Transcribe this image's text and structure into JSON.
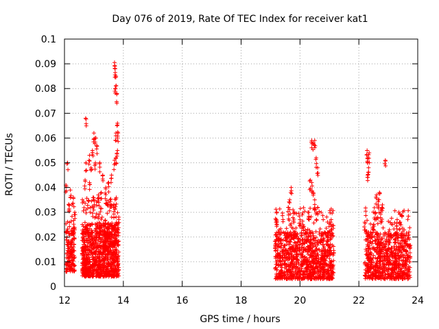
{
  "chart_data": {
    "type": "scatter",
    "title": "Day 076 of 2019, Rate Of TEC Index for receiver kat1",
    "xlabel": "GPS time / hours",
    "ylabel": "ROTI / TECUs",
    "xlim": [
      12,
      24
    ],
    "ylim": [
      0,
      0.1
    ],
    "xticks": [
      "12",
      "14",
      "16",
      "18",
      "20",
      "22",
      "24"
    ],
    "yticks": [
      "0",
      "0.01",
      "0.02",
      "0.03",
      "0.04",
      "0.05",
      "0.06",
      "0.07",
      "0.08",
      "0.09",
      "0.1"
    ],
    "grid": true,
    "marker": "+",
    "color": "#ff0000",
    "clusters": [
      {
        "x_range": [
          12.05,
          12.35
        ],
        "count": 150,
        "y_base": [
          0.006,
          0.024
        ],
        "outliers": [
          [
            12.1,
            0.05
          ],
          [
            12.05,
            0.041
          ],
          [
            12.2,
            0.039
          ],
          [
            12.3,
            0.036
          ],
          [
            12.35,
            0.03
          ],
          [
            12.15,
            0.033
          ]
        ]
      },
      {
        "x_range": [
          12.6,
          13.85
        ],
        "count": 950,
        "y_base": [
          0.004,
          0.026
        ],
        "outliers": [
          [
            12.72,
            0.068
          ],
          [
            12.73,
            0.05
          ],
          [
            12.7,
            0.043
          ],
          [
            13.0,
            0.062
          ],
          [
            13.05,
            0.06
          ],
          [
            13.1,
            0.057
          ],
          [
            13.05,
            0.05
          ],
          [
            12.95,
            0.055
          ],
          [
            12.9,
            0.048
          ],
          [
            12.85,
            0.053
          ],
          [
            13.2,
            0.05
          ],
          [
            13.3,
            0.045
          ],
          [
            13.5,
            0.042
          ],
          [
            13.7,
            0.0905
          ],
          [
            13.72,
            0.088
          ],
          [
            13.75,
            0.085
          ],
          [
            13.73,
            0.08
          ],
          [
            13.78,
            0.078
          ],
          [
            13.8,
            0.066
          ],
          [
            13.82,
            0.062
          ],
          [
            13.75,
            0.062
          ],
          [
            13.8,
            0.055
          ],
          [
            13.75,
            0.052
          ],
          [
            13.7,
            0.051
          ],
          [
            13.6,
            0.045
          ],
          [
            13.4,
            0.04
          ],
          [
            13.25,
            0.038
          ],
          [
            13.15,
            0.037
          ],
          [
            13.0,
            0.035
          ],
          [
            13.55,
            0.035
          ],
          [
            12.85,
            0.042
          ]
        ]
      },
      {
        "x_range": [
          19.15,
          21.15
        ],
        "count": 950,
        "y_base": [
          0.003,
          0.022
        ],
        "outliers": [
          [
            19.2,
            0.027
          ],
          [
            19.6,
            0.032
          ],
          [
            19.65,
            0.035
          ],
          [
            19.7,
            0.04
          ],
          [
            19.8,
            0.03
          ],
          [
            20.0,
            0.027
          ],
          [
            20.1,
            0.025
          ],
          [
            20.4,
            0.059
          ],
          [
            20.45,
            0.058
          ],
          [
            20.5,
            0.059
          ],
          [
            20.55,
            0.052
          ],
          [
            20.6,
            0.048
          ],
          [
            20.35,
            0.043
          ],
          [
            20.4,
            0.042
          ],
          [
            20.45,
            0.038
          ],
          [
            20.5,
            0.035
          ],
          [
            20.6,
            0.032
          ],
          [
            20.55,
            0.03
          ],
          [
            20.3,
            0.03
          ],
          [
            21.0,
            0.026
          ],
          [
            21.05,
            0.026
          ]
        ]
      },
      {
        "x_range": [
          22.2,
          23.75
        ],
        "count": 700,
        "y_base": [
          0.003,
          0.022
        ],
        "outliers": [
          [
            22.28,
            0.055
          ],
          [
            22.3,
            0.052
          ],
          [
            22.33,
            0.048
          ],
          [
            22.3,
            0.045
          ],
          [
            22.35,
            0.054
          ],
          [
            22.9,
            0.051
          ],
          [
            22.6,
            0.037
          ],
          [
            22.65,
            0.035
          ],
          [
            22.7,
            0.038
          ],
          [
            22.75,
            0.031
          ],
          [
            22.8,
            0.033
          ],
          [
            22.55,
            0.03
          ],
          [
            22.2,
            0.026
          ],
          [
            23.3,
            0.027
          ],
          [
            23.4,
            0.026
          ],
          [
            23.7,
            0.022
          ],
          [
            22.5,
            0.025
          ]
        ]
      }
    ]
  }
}
